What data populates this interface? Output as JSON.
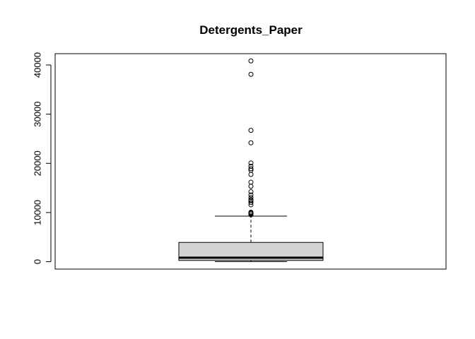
{
  "chart_data": {
    "type": "boxplot",
    "title": "Detergents_Paper",
    "xlabel": "",
    "ylabel": "",
    "ylim": [
      -1500,
      42300
    ],
    "y_ticks": [
      0,
      10000,
      20000,
      30000,
      40000
    ],
    "y_tick_labels": [
      "0",
      "10000",
      "20000",
      "30000",
      "40000"
    ],
    "box": {
      "whisker_low": 3,
      "q1": 257,
      "median": 816,
      "q3": 3922,
      "whisker_high": 9265
    },
    "outliers": [
      40827,
      38102,
      26701,
      24171,
      20070,
      19410,
      18906,
      18594,
      17740,
      16171,
      15340,
      14235,
      13583,
      13034,
      12591,
      12408,
      12034,
      11577,
      10069,
      9965,
      9836,
      9794,
      9529
    ],
    "colors": {
      "box_fill": "#d3d3d3",
      "stroke": "#000000",
      "background": "#ffffff"
    },
    "grid": false
  }
}
